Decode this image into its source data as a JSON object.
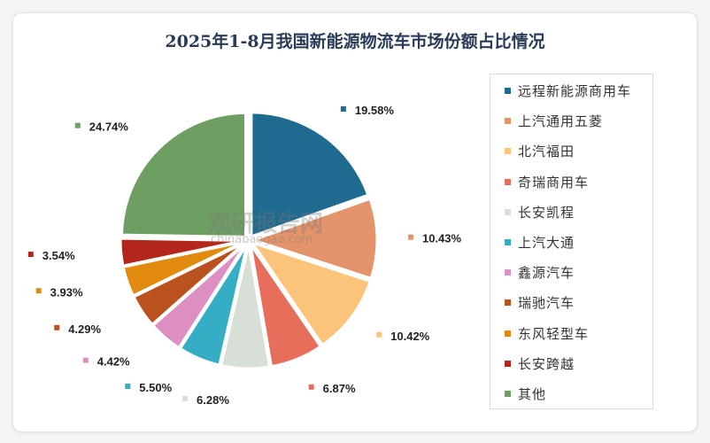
{
  "chart_data": {
    "type": "pie",
    "title": "2025年1-8月我国新能源物流车市场份额占比情况",
    "start_angle": "12 o'clock",
    "direction": "clockwise",
    "legend_placement": "right",
    "slices": [
      {
        "label": "远程新能源商用车",
        "value": 19.58,
        "display": "19.58%",
        "color": "#1f6a8f"
      },
      {
        "label": "上汽通用五菱",
        "value": 10.43,
        "display": "10.43%",
        "color": "#e3946a"
      },
      {
        "label": "北汽福田",
        "value": 10.42,
        "display": "10.42%",
        "color": "#fcc47a"
      },
      {
        "label": "奇瑞商用车",
        "value": 6.87,
        "display": "6.87%",
        "color": "#e66e5a"
      },
      {
        "label": "长安凯程",
        "value": 6.28,
        "display": "6.28%",
        "color": "#d7dfd6"
      },
      {
        "label": "上汽大通",
        "value": 5.5,
        "display": "5.50%",
        "color": "#35adc4"
      },
      {
        "label": "鑫源汽车",
        "value": 4.42,
        "display": "4.42%",
        "color": "#dc8fc0"
      },
      {
        "label": "瑞驰汽车",
        "value": 4.29,
        "display": "4.29%",
        "color": "#b9521f"
      },
      {
        "label": "东风轻型车",
        "value": 3.93,
        "display": "3.93%",
        "color": "#e18a0e"
      },
      {
        "label": "长安跨越",
        "value": 3.54,
        "display": "3.54%",
        "color": "#b3261c"
      },
      {
        "label": "其他",
        "value": 24.74,
        "display": "24.74%",
        "color": "#6f9e63"
      }
    ]
  },
  "watermark": {
    "cn": "观研报告网",
    "en": "chinabaogao.com"
  }
}
